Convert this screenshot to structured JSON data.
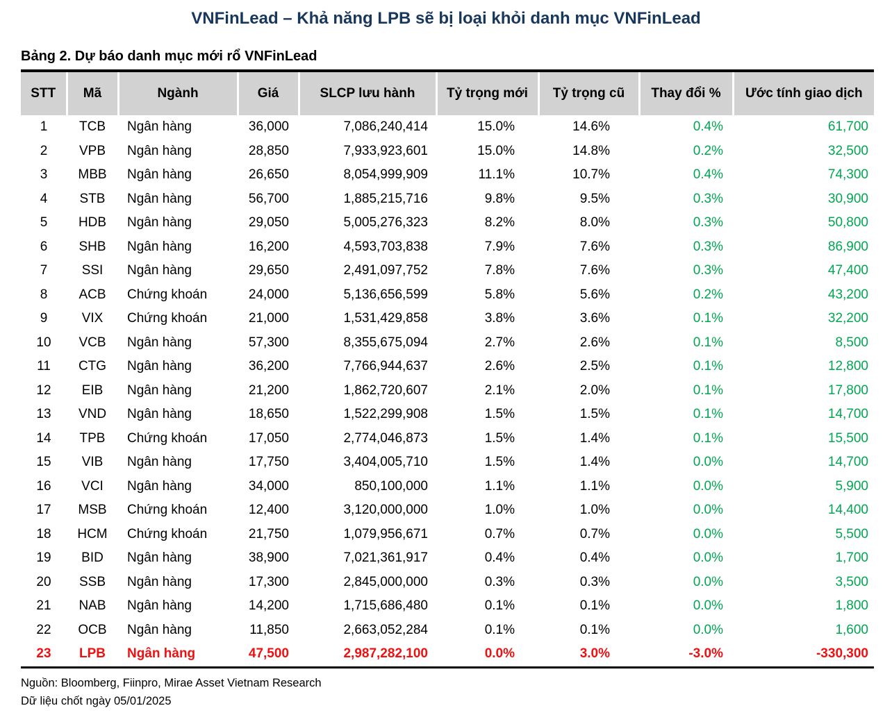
{
  "title": "VNFinLead – Khả năng LPB sẽ bị loại khỏi danh mục VNFinLead",
  "table": {
    "caption": "Bảng 2. Dự báo danh mục mới rổ VNFinLead",
    "columns": [
      "STT",
      "Mã",
      "Ngành",
      "Giá",
      "SLCP lưu hành",
      "Tỷ trọng mới",
      "Tỷ trọng cũ",
      "Thay đổi %",
      "Ước tính giao dịch"
    ],
    "rows": [
      {
        "cells": [
          "1",
          "TCB",
          "Ngân hàng",
          "36,000",
          "7,086,240,414",
          "15.0%",
          "14.6%",
          "0.4%",
          "61,700"
        ],
        "highlight": false
      },
      {
        "cells": [
          "2",
          "VPB",
          "Ngân hàng",
          "28,850",
          "7,933,923,601",
          "15.0%",
          "14.8%",
          "0.2%",
          "32,500"
        ],
        "highlight": false
      },
      {
        "cells": [
          "3",
          "MBB",
          "Ngân hàng",
          "26,650",
          "8,054,999,909",
          "11.1%",
          "10.7%",
          "0.4%",
          "74,300"
        ],
        "highlight": false
      },
      {
        "cells": [
          "4",
          "STB",
          "Ngân hàng",
          "56,700",
          "1,885,215,716",
          "9.8%",
          "9.5%",
          "0.3%",
          "30,900"
        ],
        "highlight": false
      },
      {
        "cells": [
          "5",
          "HDB",
          "Ngân hàng",
          "29,050",
          "5,005,276,323",
          "8.2%",
          "8.0%",
          "0.3%",
          "50,800"
        ],
        "highlight": false
      },
      {
        "cells": [
          "6",
          "SHB",
          "Ngân hàng",
          "16,200",
          "4,593,703,838",
          "7.9%",
          "7.6%",
          "0.3%",
          "86,900"
        ],
        "highlight": false
      },
      {
        "cells": [
          "7",
          "SSI",
          "Ngân hàng",
          "29,650",
          "2,491,097,752",
          "7.8%",
          "7.6%",
          "0.3%",
          "47,400"
        ],
        "highlight": false
      },
      {
        "cells": [
          "8",
          "ACB",
          "Chứng khoán",
          "24,000",
          "5,136,656,599",
          "5.8%",
          "5.6%",
          "0.2%",
          "43,200"
        ],
        "highlight": false
      },
      {
        "cells": [
          "9",
          "VIX",
          "Chứng khoán",
          "21,000",
          "1,531,429,858",
          "3.8%",
          "3.6%",
          "0.1%",
          "32,200"
        ],
        "highlight": false
      },
      {
        "cells": [
          "10",
          "VCB",
          "Ngân hàng",
          "57,300",
          "8,355,675,094",
          "2.7%",
          "2.6%",
          "0.1%",
          "8,500"
        ],
        "highlight": false
      },
      {
        "cells": [
          "11",
          "CTG",
          "Ngân hàng",
          "36,200",
          "7,766,944,637",
          "2.6%",
          "2.5%",
          "0.1%",
          "12,800"
        ],
        "highlight": false
      },
      {
        "cells": [
          "12",
          "EIB",
          "Ngân hàng",
          "21,200",
          "1,862,720,607",
          "2.1%",
          "2.0%",
          "0.1%",
          "17,800"
        ],
        "highlight": false
      },
      {
        "cells": [
          "13",
          "VND",
          "Ngân hàng",
          "18,650",
          "1,522,299,908",
          "1.5%",
          "1.5%",
          "0.1%",
          "14,700"
        ],
        "highlight": false
      },
      {
        "cells": [
          "14",
          "TPB",
          "Chứng khoán",
          "17,050",
          "2,774,046,873",
          "1.5%",
          "1.4%",
          "0.1%",
          "15,500"
        ],
        "highlight": false
      },
      {
        "cells": [
          "15",
          "VIB",
          "Ngân hàng",
          "17,750",
          "3,404,005,710",
          "1.5%",
          "1.4%",
          "0.0%",
          "14,700"
        ],
        "highlight": false
      },
      {
        "cells": [
          "16",
          "VCI",
          "Ngân hàng",
          "34,000",
          "850,100,000",
          "1.1%",
          "1.1%",
          "0.0%",
          "5,900"
        ],
        "highlight": false
      },
      {
        "cells": [
          "17",
          "MSB",
          "Chứng khoán",
          "12,400",
          "3,120,000,000",
          "1.0%",
          "1.0%",
          "0.0%",
          "14,400"
        ],
        "highlight": false
      },
      {
        "cells": [
          "18",
          "HCM",
          "Chứng khoán",
          "21,750",
          "1,079,956,671",
          "0.7%",
          "0.7%",
          "0.0%",
          "5,500"
        ],
        "highlight": false
      },
      {
        "cells": [
          "19",
          "BID",
          "Ngân hàng",
          "38,900",
          "7,021,361,917",
          "0.4%",
          "0.4%",
          "0.0%",
          "1,700"
        ],
        "highlight": false
      },
      {
        "cells": [
          "20",
          "SSB",
          "Ngân hàng",
          "17,300",
          "2,845,000,000",
          "0.3%",
          "0.3%",
          "0.0%",
          "3,500"
        ],
        "highlight": false
      },
      {
        "cells": [
          "21",
          "NAB",
          "Ngân hàng",
          "14,200",
          "1,715,686,480",
          "0.1%",
          "0.1%",
          "0.0%",
          "1,800"
        ],
        "highlight": false
      },
      {
        "cells": [
          "22",
          "OCB",
          "Ngân hàng",
          "11,850",
          "2,663,052,284",
          "0.1%",
          "0.1%",
          "0.0%",
          "1,600"
        ],
        "highlight": false
      },
      {
        "cells": [
          "23",
          "LPB",
          "Ngân hàng",
          "47,500",
          "2,987,282,100",
          "0.0%",
          "3.0%",
          "-3.0%",
          "-330,300"
        ],
        "highlight": true
      }
    ]
  },
  "footer": {
    "source": "Nguồn: Bloomberg, Fiinpro, Mirae Asset Vietnam Research",
    "note": "Dữ liệu chốt ngày 05/01/2025"
  },
  "colors": {
    "title": "#17375d",
    "positive": "#00a651",
    "negative": "#ee1111",
    "header_bg": "#d2d2d2"
  }
}
